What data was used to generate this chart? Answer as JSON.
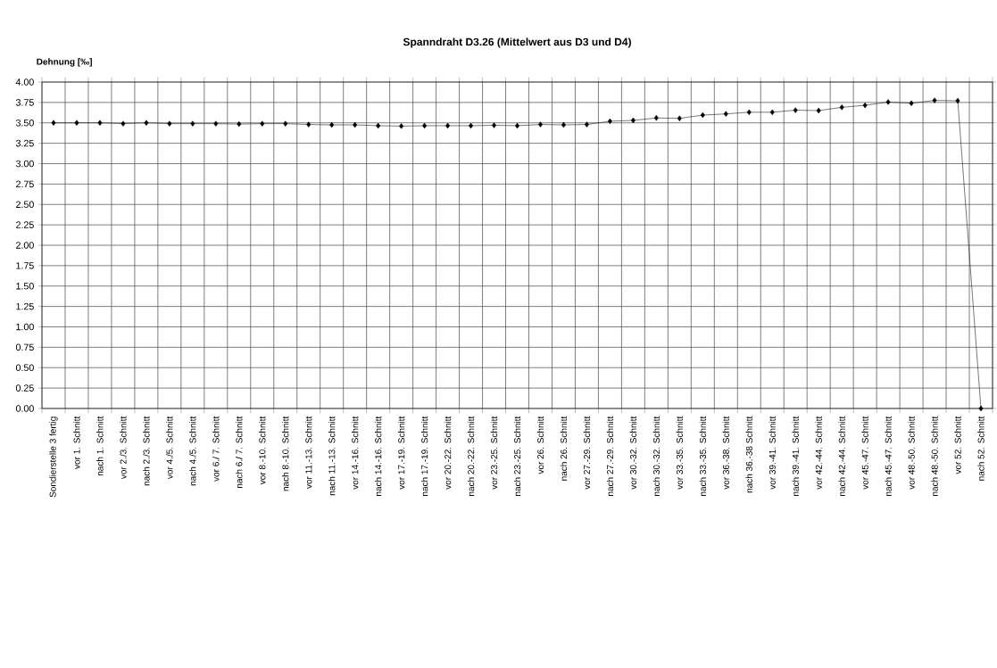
{
  "chart_data": {
    "type": "line",
    "title": "Spanndraht D3.26 (Mittelwert aus D3 und D4)",
    "ylabel": "Dehnung [‰]",
    "categories": [
      "Sondierstelle 3 fertig",
      "vor 1. Schnitt",
      "nach 1. Schnitt",
      "vor 2./3. Schnitt",
      "nach 2./3. Schnitt",
      "vor 4./5. Schnitt",
      "nach 4./5. Schnitt",
      "vor 6./ 7. Schnitt",
      "nach 6./ 7. Schnitt",
      "vor 8.-10. Schnitt",
      "nach 8.-10. Schnitt",
      "vor 11.-13. Schnitt",
      "nach 11.-13. Schnitt",
      "vor 14.-16. Schnitt",
      "nach 14.-16. Schnitt",
      "vor 17.-19. Schnitt",
      "nach 17.-19. Schnitt",
      "vor 20.-22. Schnitt",
      "nach 20.-22. Schnitt",
      "vor 23.-25. Schnitt",
      "nach 23.-25. Schnitt",
      "vor 26. Schnitt",
      "nach 26. Schnitt",
      "vor 27.-29. Schnitt",
      "nach 27.-29. Schnitt",
      "vor 30.-32. Schnitt",
      "nach 30.-32. Schnitt",
      "vor 33.-35. Schnitt",
      "nach 33.-35. Schnitt",
      "vor 36.-38. Schnitt",
      "nach 36.-38 Schnitt",
      "vor 39.-41. Schnitt",
      "nach 39.-41. Schnitt",
      "vor 42.-44. Schnitt",
      "nach 42.-44. Schnitt",
      "vor 45.-47. Schnitt",
      "nach 45.-47. Schnitt",
      "vor 48.-50. Schnitt",
      "nach 48.-50. Schnitt",
      "vor 52. Schnitt",
      "nach 52. Schnitt"
    ],
    "values": [
      3.5,
      3.5,
      3.5,
      3.49,
      3.5,
      3.49,
      3.49,
      3.49,
      3.485,
      3.49,
      3.49,
      3.48,
      3.475,
      3.475,
      3.465,
      3.46,
      3.465,
      3.465,
      3.465,
      3.47,
      3.465,
      3.48,
      3.475,
      3.48,
      3.52,
      3.53,
      3.56,
      3.555,
      3.595,
      3.61,
      3.63,
      3.63,
      3.655,
      3.65,
      3.69,
      3.715,
      3.755,
      3.74,
      3.775,
      3.77,
      0.0
    ],
    "color": "#000000",
    "ylim": [
      0,
      4
    ],
    "yticks": [
      {
        "value": 0,
        "label": "0.00"
      },
      {
        "value": 0.25,
        "label": "0.25"
      },
      {
        "value": 0.5,
        "label": "0.50"
      },
      {
        "value": 0.75,
        "label": "0.75"
      },
      {
        "value": 1,
        "label": "1.00"
      },
      {
        "value": 1.25,
        "label": "1.25"
      },
      {
        "value": 1.5,
        "label": "1.50"
      },
      {
        "value": 1.75,
        "label": "1.75"
      },
      {
        "value": 2,
        "label": "2.00"
      },
      {
        "value": 2.25,
        "label": "2.25"
      },
      {
        "value": 2.5,
        "label": "2.50"
      },
      {
        "value": 2.75,
        "label": "2.75"
      },
      {
        "value": 3,
        "label": "3.00"
      },
      {
        "value": 3.25,
        "label": "3.25"
      },
      {
        "value": 3.5,
        "label": "3.50"
      },
      {
        "value": 3.75,
        "label": "3.75"
      },
      {
        "value": 4,
        "label": "4.00"
      }
    ],
    "grid": true,
    "marker": "diamond",
    "line_style": "solid"
  }
}
